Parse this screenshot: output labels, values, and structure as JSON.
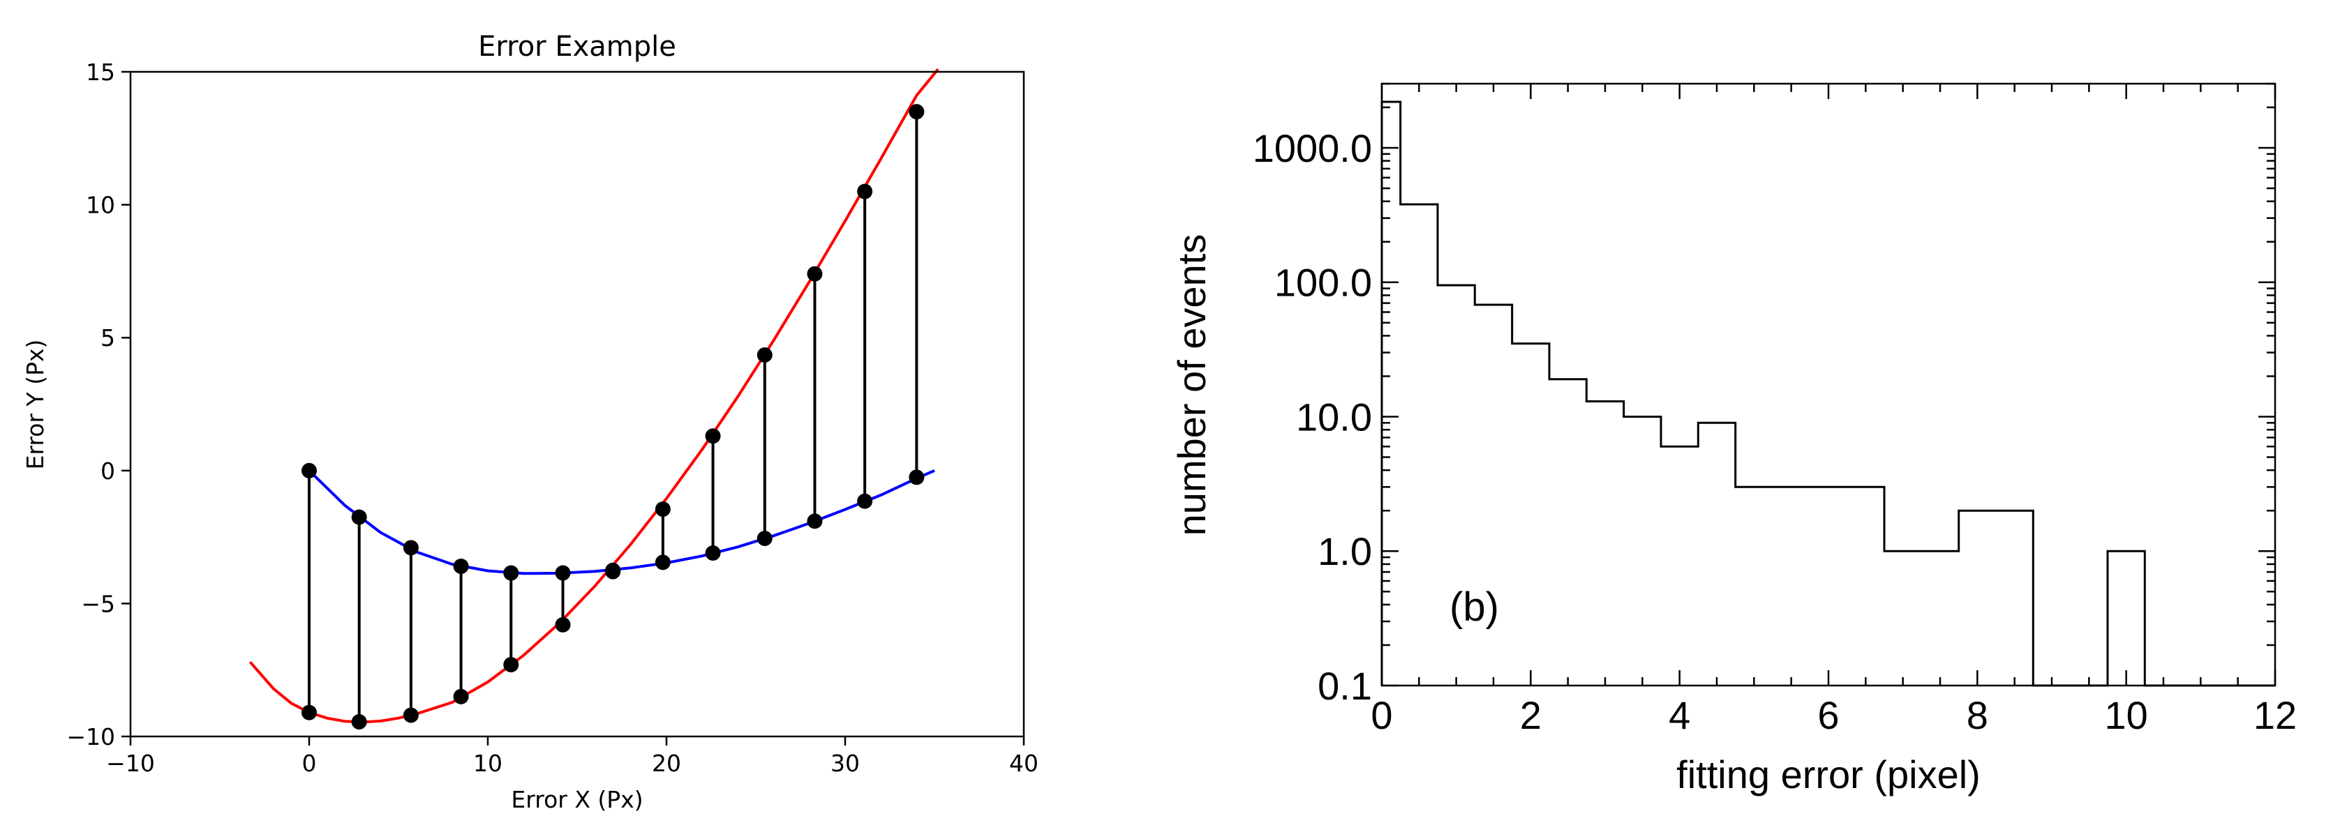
{
  "chart_data": [
    {
      "type": "line",
      "title": "Error Example",
      "xlabel": "Error X (Px)",
      "ylabel": "Error Y (Px)",
      "xlim": [
        -10,
        40
      ],
      "ylim": [
        -10,
        15
      ],
      "x_ticks": [
        -10,
        0,
        10,
        20,
        30,
        40
      ],
      "y_ticks": [
        -10,
        -5,
        0,
        5,
        10,
        15
      ],
      "x_tick_labels": [
        "−10",
        "0",
        "10",
        "20",
        "30",
        "40"
      ],
      "y_tick_labels": [
        "−10",
        "−5",
        "0",
        "5",
        "10",
        "15"
      ],
      "grid": false,
      "legend": "none",
      "x": [
        0,
        2.8,
        5.7,
        8.5,
        11.3,
        14.2,
        17.0,
        19.8,
        22.6,
        25.5,
        28.3,
        31.1,
        34.0
      ],
      "series": [
        {
          "color": "#0000ff",
          "values": [
            0,
            -1.75,
            -2.9,
            -3.6,
            -3.85,
            -3.85,
            -3.75,
            -3.45,
            -3.1,
            -2.55,
            -1.9,
            -1.15,
            -0.25
          ],
          "curve_x": [
            0,
            2,
            4,
            6,
            8,
            10,
            12,
            14,
            16,
            18,
            20,
            22,
            24,
            26,
            28,
            30,
            32,
            34,
            35
          ],
          "curve_y": [
            0,
            -1.31,
            -2.33,
            -3.06,
            -3.52,
            -3.77,
            -3.87,
            -3.86,
            -3.79,
            -3.66,
            -3.47,
            -3.21,
            -2.87,
            -2.45,
            -1.98,
            -1.46,
            -0.92,
            -0.29,
            0
          ]
        },
        {
          "color": "#ff0000",
          "values": [
            -9.1,
            -9.45,
            -9.2,
            -8.5,
            -7.3,
            -5.8,
            -3.8,
            -1.45,
            1.3,
            4.35,
            7.4,
            10.5,
            13.5
          ],
          "curve_x": [
            -3.3,
            -2,
            -1,
            0,
            1,
            2,
            3,
            4,
            5,
            6,
            8,
            10,
            12,
            14,
            16,
            18,
            20,
            22,
            24,
            26,
            28,
            30,
            32,
            34,
            35.2
          ],
          "curve_y": [
            -7.2,
            -8.2,
            -8.75,
            -9.1,
            -9.31,
            -9.43,
            -9.46,
            -9.42,
            -9.31,
            -9.15,
            -8.72,
            -7.95,
            -6.95,
            -5.74,
            -4.34,
            -2.77,
            -1.05,
            0.8,
            2.79,
            4.9,
            7.11,
            9.39,
            11.73,
            14.11,
            15.1
          ]
        }
      ],
      "connector_color": "#000000",
      "marker_color": "#000000"
    },
    {
      "type": "histogram",
      "xlabel": "fitting error (pixel)",
      "ylabel": "number of events",
      "annotation": "(b)",
      "xlim": [
        0,
        12
      ],
      "ylim": [
        0.1,
        3000
      ],
      "yscale": "log",
      "x_ticks": [
        0,
        2,
        4,
        6,
        8,
        10,
        12
      ],
      "x_tick_labels": [
        "0",
        "2",
        "4",
        "6",
        "8",
        "10",
        "12"
      ],
      "y_ticks": [
        0.1,
        1,
        10,
        100,
        1000
      ],
      "y_tick_labels": [
        "0.1",
        "1.0",
        "10.0",
        "100.0",
        "1000.0"
      ],
      "x_minor_step": 0.5,
      "grid": false,
      "legend": "none",
      "bin_edges": [
        0,
        0.25,
        0.75,
        1.25,
        1.75,
        2.25,
        2.75,
        3.25,
        3.75,
        4.25,
        4.75,
        5.25,
        5.75,
        6.25,
        6.75,
        7.25,
        7.75,
        8.25,
        8.75,
        9.25,
        9.75,
        10.25,
        10.75,
        11.25,
        11.75,
        12
      ],
      "counts": [
        2200,
        380,
        95,
        68,
        35,
        19,
        13,
        10,
        6,
        9,
        3,
        3,
        3,
        3,
        1,
        1,
        2,
        2,
        0,
        0,
        1,
        0,
        0,
        0,
        0
      ]
    }
  ]
}
